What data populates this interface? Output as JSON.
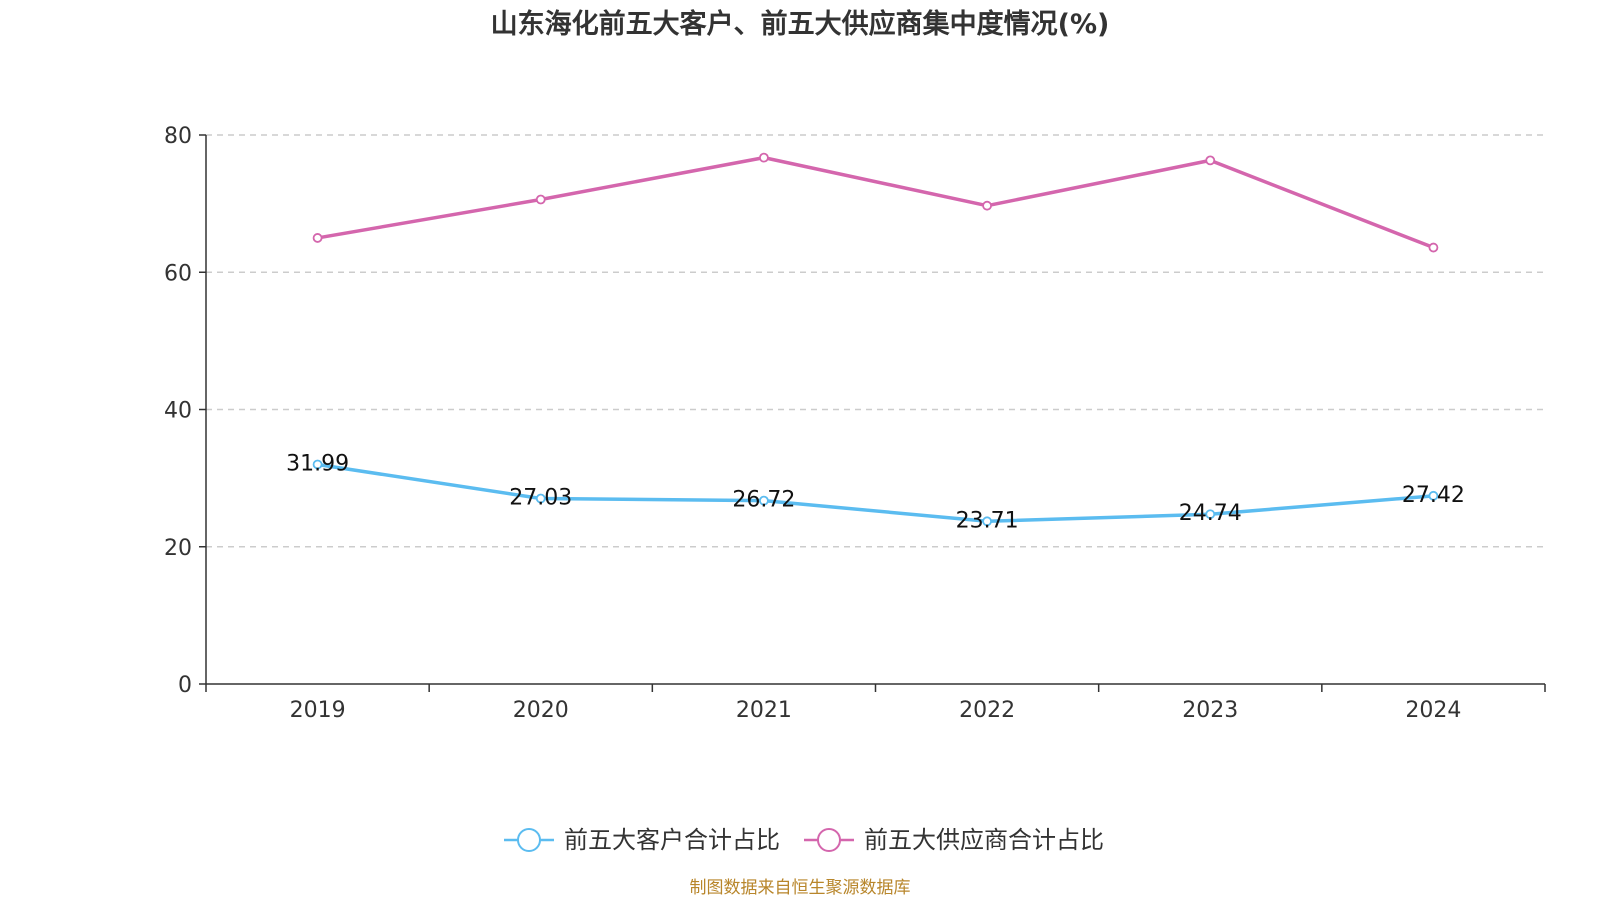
{
  "chart_data": {
    "type": "line",
    "title": "山东海化前五大客户、前五大供应商集中度情况(%)",
    "categories": [
      "2019",
      "2020",
      "2021",
      "2022",
      "2023",
      "2024"
    ],
    "ylim": [
      0,
      80
    ],
    "yticks": [
      0,
      20,
      40,
      60,
      80
    ],
    "ytick_labels": [
      "0",
      "20",
      "40",
      "60",
      "80"
    ],
    "grid": true,
    "legend_position": "bottom-center",
    "series": [
      {
        "name": "前五大客户合计占比",
        "color": "#5bbcf0",
        "values": [
          31.99,
          27.03,
          26.72,
          23.71,
          24.74,
          27.42
        ],
        "value_labels": [
          "31.99",
          "27.03",
          "26.72",
          "23.71",
          "24.74",
          "27.42"
        ],
        "show_labels": true
      },
      {
        "name": "前五大供应商合计占比",
        "color": "#d466ad",
        "values": [
          65.0,
          70.6,
          76.7,
          69.7,
          76.3,
          63.6
        ],
        "show_labels": false
      }
    ],
    "source": "制图数据来自恒生聚源数据库"
  }
}
